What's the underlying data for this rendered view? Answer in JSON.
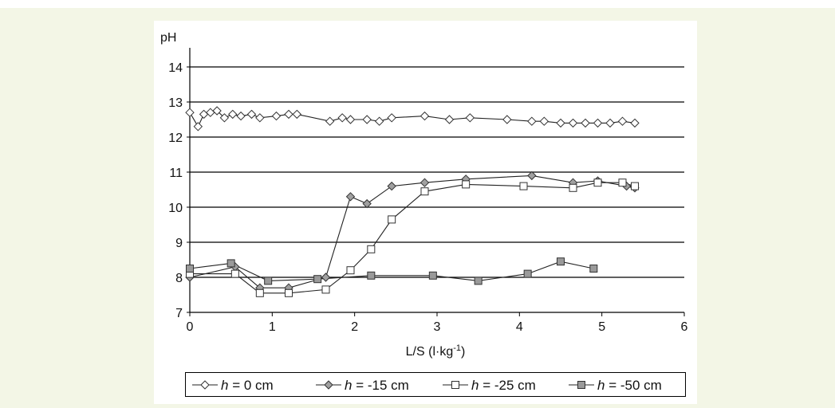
{
  "chart_data": {
    "type": "line",
    "title": "",
    "xlabel": "L/S (l·kg",
    "xlabel_sup": "-1",
    "xlabel_close": ")",
    "ylabel": "pH",
    "xlim": [
      0,
      6
    ],
    "ylim": [
      7,
      14
    ],
    "x_ticks": [
      "0",
      "1",
      "2",
      "3",
      "4",
      "5",
      "6"
    ],
    "y_ticks": [
      "7",
      "8",
      "9",
      "10",
      "11",
      "12",
      "13",
      "14"
    ],
    "grid": "horizontal",
    "legend_position": "bottom",
    "series": [
      {
        "name": "h = 0 cm",
        "legend_var": "h",
        "legend_rest": " = 0 cm",
        "marker": "diamond",
        "fill": "#ffffff",
        "x": [
          0,
          0.1,
          0.17,
          0.25,
          0.33,
          0.42,
          0.52,
          0.62,
          0.75,
          0.85,
          1.05,
          1.2,
          1.3,
          1.7,
          1.85,
          1.95,
          2.15,
          2.3,
          2.45,
          2.85,
          3.15,
          3.4,
          3.85,
          4.15,
          4.3,
          4.5,
          4.65,
          4.8,
          4.95,
          5.1,
          5.25,
          5.4
        ],
        "y": [
          12.7,
          12.3,
          12.65,
          12.7,
          12.75,
          12.55,
          12.65,
          12.6,
          12.65,
          12.55,
          12.6,
          12.65,
          12.65,
          12.45,
          12.55,
          12.5,
          12.5,
          12.45,
          12.55,
          12.6,
          12.5,
          12.55,
          12.5,
          12.45,
          12.45,
          12.4,
          12.4,
          12.4,
          12.4,
          12.4,
          12.45,
          12.4
        ]
      },
      {
        "name": "h = -15 cm",
        "legend_var": "h",
        "legend_rest": " = -15 cm",
        "marker": "diamond",
        "fill": "#a0a0a0",
        "x": [
          0,
          0.55,
          0.85,
          1.2,
          1.65,
          1.95,
          2.15,
          2.45,
          2.85,
          3.35,
          4.15,
          4.65,
          4.95,
          5.3,
          5.4
        ],
        "y": [
          8.0,
          8.3,
          7.7,
          7.7,
          8.0,
          10.3,
          10.1,
          10.6,
          10.7,
          10.8,
          10.9,
          10.7,
          10.75,
          10.6,
          10.55
        ]
      },
      {
        "name": "h = -25 cm",
        "legend_var": "h",
        "legend_rest": " = -25 cm",
        "marker": "square",
        "fill": "#ffffff",
        "x": [
          0,
          0.55,
          0.85,
          1.2,
          1.65,
          1.95,
          2.2,
          2.45,
          2.85,
          3.35,
          4.05,
          4.65,
          4.95,
          5.25,
          5.4
        ],
        "y": [
          8.1,
          8.1,
          7.55,
          7.55,
          7.65,
          8.2,
          8.8,
          9.65,
          10.45,
          10.65,
          10.6,
          10.55,
          10.7,
          10.7,
          10.6
        ]
      },
      {
        "name": "h = -50 cm",
        "legend_var": "h",
        "legend_rest": " = -50 cm",
        "marker": "square",
        "fill": "#9a9a9a",
        "x": [
          0,
          0.5,
          0.95,
          1.55,
          2.2,
          2.95,
          3.5,
          4.1,
          4.5,
          4.9
        ],
        "y": [
          8.25,
          8.4,
          7.9,
          7.95,
          8.05,
          8.05,
          7.9,
          8.1,
          8.45,
          8.25
        ]
      }
    ]
  }
}
